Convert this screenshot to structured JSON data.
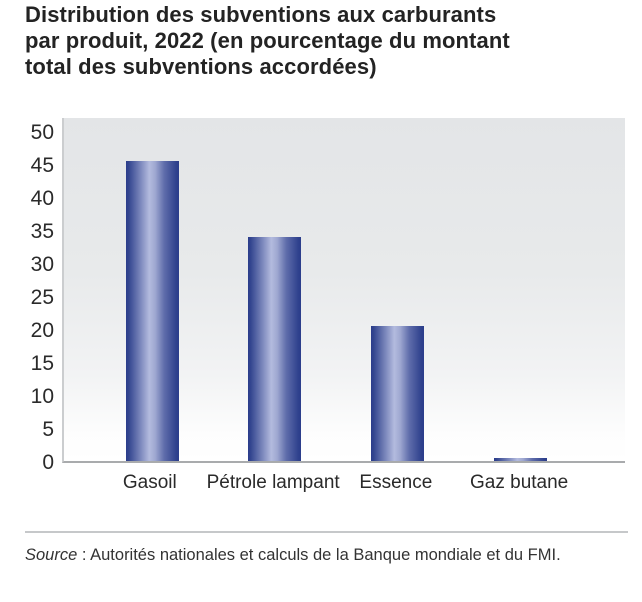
{
  "title": "Distribution des subventions aux carburants\npar produit, 2022 (en pourcentage du montant\ntotal des subventions accordées)",
  "chart_data": {
    "type": "bar",
    "categories": [
      "Gasoil",
      "Pétrole lampant",
      "Essence",
      "Gaz butane"
    ],
    "values": [
      45.5,
      34,
      20.5,
      0.5
    ],
    "title": "Distribution des subventions aux carburants par produit, 2022 (en pourcentage du montant total des subventions accordées)",
    "xlabel": "",
    "ylabel": "",
    "ylim": [
      0,
      50
    ],
    "ytick_step": 5,
    "yticks": [
      0,
      5,
      10,
      15,
      20,
      25,
      30,
      35,
      40,
      45,
      50
    ],
    "grid": false,
    "legend": false,
    "bar_color_edge": "#2e4090",
    "bar_color_center": "#b3bbde",
    "plot_bg_top": "#e3e5e7",
    "plot_bg_bottom": "#ffffff"
  },
  "source": {
    "label_italic": "Source",
    "text": " : Autorités nationales et calculs de la Banque mondiale et du FMI."
  }
}
